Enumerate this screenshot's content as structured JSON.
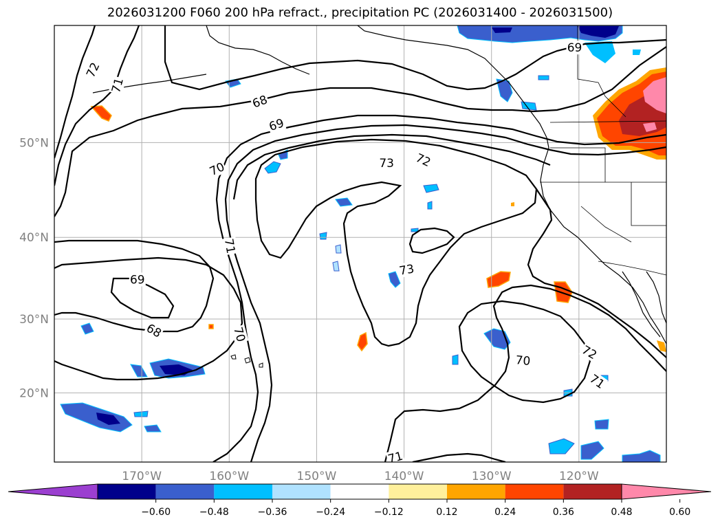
{
  "title": "2026031200 F060 200 hPa refract., precipitation PC (2026031400 - 2026031500)",
  "map": {
    "projection": "Mercator",
    "lon_range": [
      -180,
      -110
    ],
    "lat_range": [
      10,
      60
    ],
    "lat_ticks": [
      {
        "lat": 20,
        "label": "20°N"
      },
      {
        "lat": 30,
        "label": "30°N"
      },
      {
        "lat": 40,
        "label": "40°N"
      },
      {
        "lat": 50,
        "label": "50°N"
      }
    ],
    "lon_ticks": [
      {
        "lon": -170,
        "label": "170°W"
      },
      {
        "lon": -160,
        "label": "160°W"
      },
      {
        "lon": -150,
        "label": "150°W"
      },
      {
        "lon": -140,
        "label": "140°W"
      },
      {
        "lon": -130,
        "label": "130°W"
      },
      {
        "lon": -120,
        "label": "120°W"
      }
    ],
    "grid": true,
    "contour_labels": [
      {
        "lon": -175.6,
        "lat": 56.5,
        "text": "72",
        "rot": -65
      },
      {
        "lon": -172.8,
        "lat": 55.2,
        "text": "71",
        "rot": -75
      },
      {
        "lon": -156.5,
        "lat": 53.8,
        "text": "68",
        "rot": -20
      },
      {
        "lon": -154.6,
        "lat": 51.7,
        "text": "69",
        "rot": -18
      },
      {
        "lon": -161.4,
        "lat": 47.4,
        "text": "70",
        "rot": -25
      },
      {
        "lon": -142.0,
        "lat": 48.0,
        "text": "73",
        "rot": 0
      },
      {
        "lon": -137.8,
        "lat": 48.3,
        "text": "72",
        "rot": 25
      },
      {
        "lon": -120.5,
        "lat": 58.3,
        "text": "69",
        "rot": 0
      },
      {
        "lon": -159.9,
        "lat": 39.0,
        "text": "71",
        "rot": 80
      },
      {
        "lon": -170.5,
        "lat": 35.0,
        "text": "69",
        "rot": 0
      },
      {
        "lon": -168.6,
        "lat": 28.5,
        "text": "68",
        "rot": 30
      },
      {
        "lon": -158.8,
        "lat": 28.0,
        "text": "70",
        "rot": 75
      },
      {
        "lon": -139.7,
        "lat": 36.2,
        "text": "73",
        "rot": -10
      },
      {
        "lon": -126.4,
        "lat": 24.5,
        "text": "70",
        "rot": 5
      },
      {
        "lon": -118.8,
        "lat": 25.6,
        "text": "72",
        "rot": 30
      },
      {
        "lon": -117.9,
        "lat": 21.6,
        "text": "71",
        "rot": 35
      },
      {
        "lon": -141.0,
        "lat": 10.7,
        "text": "71",
        "rot": -15
      }
    ]
  },
  "colorbar": {
    "ticks": [
      "−0.60",
      "−0.48",
      "−0.36",
      "−0.24",
      "−0.12",
      "0.12",
      "0.24",
      "0.36",
      "0.48",
      "0.60"
    ],
    "colors": [
      "#9b3fd0",
      "#00008b",
      "#3a5fcd",
      "#00bfff",
      "#b0e2ff",
      "#ffffff",
      "#fff09c",
      "#ffa500",
      "#ff4500",
      "#b22222",
      "#ff88aa"
    ],
    "extend": "both"
  },
  "legend_colors": {
    "blue_dark": "#00008b",
    "blue_mid": "#3a5fcd",
    "blue_light": "#00bfff",
    "red": "#ff4500",
    "orange": "#ffa500",
    "pink": "#ff88aa"
  }
}
